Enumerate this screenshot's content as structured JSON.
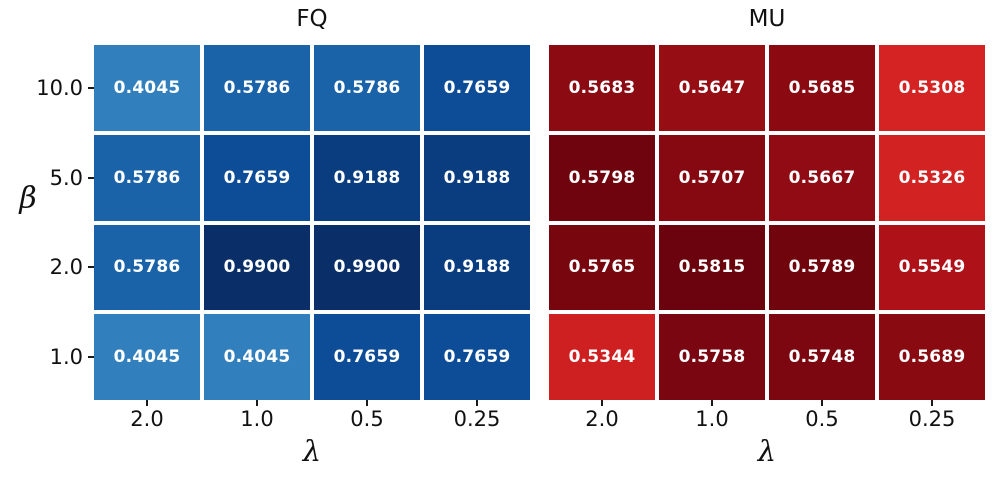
{
  "figure": {
    "background": "#ffffff",
    "text_color": "#111111",
    "tick_color": "#1a1a1a",
    "annotation_text_color": "#ffffff",
    "cell_gap_color": "#ffffff"
  },
  "chart_data": [
    {
      "type": "heatmap",
      "title": "FQ",
      "xlabel": "λ",
      "ylabel": "β",
      "x_categories": [
        "2.0",
        "1.0",
        "0.5",
        "0.25"
      ],
      "y_categories": [
        "10.0",
        "5.0",
        "2.0",
        "1.0"
      ],
      "y_tick_labels_shown": true,
      "annotated": true,
      "annotation_decimals": 4,
      "colormap": "Blues",
      "values": [
        [
          0.4045,
          0.5786,
          0.5786,
          0.7659
        ],
        [
          0.5786,
          0.7659,
          0.9188,
          0.9188
        ],
        [
          0.5786,
          0.99,
          0.99,
          0.9188
        ],
        [
          0.4045,
          0.4045,
          0.7659,
          0.7659
        ]
      ],
      "color_stops": [
        {
          "v": 0.4045,
          "color": "#317fbd"
        },
        {
          "v": 0.5786,
          "color": "#1b63a9"
        },
        {
          "v": 0.7659,
          "color": "#0d4c96"
        },
        {
          "v": 0.9188,
          "color": "#0a3d80"
        },
        {
          "v": 0.99,
          "color": "#0a2f68"
        }
      ]
    },
    {
      "type": "heatmap",
      "title": "MU",
      "xlabel": "λ",
      "ylabel": "",
      "x_categories": [
        "2.0",
        "1.0",
        "0.5",
        "0.25"
      ],
      "y_categories": [
        "10.0",
        "5.0",
        "2.0",
        "1.0"
      ],
      "y_tick_labels_shown": false,
      "annotated": true,
      "annotation_decimals": 4,
      "colormap": "Reds",
      "values": [
        [
          0.5683,
          0.5647,
          0.5685,
          0.5308
        ],
        [
          0.5798,
          0.5707,
          0.5667,
          0.5326
        ],
        [
          0.5765,
          0.5815,
          0.5789,
          0.5549
        ],
        [
          0.5344,
          0.5758,
          0.5748,
          0.5689
        ]
      ],
      "color_stops": [
        {
          "v": 0.5308,
          "color": "#d42322"
        },
        {
          "v": 0.5344,
          "color": "#cf2021"
        },
        {
          "v": 0.5549,
          "color": "#ae1117"
        },
        {
          "v": 0.5647,
          "color": "#960d14"
        },
        {
          "v": 0.5685,
          "color": "#8b0a12"
        },
        {
          "v": 0.5748,
          "color": "#7c0710"
        },
        {
          "v": 0.5815,
          "color": "#6a030d"
        }
      ]
    }
  ]
}
